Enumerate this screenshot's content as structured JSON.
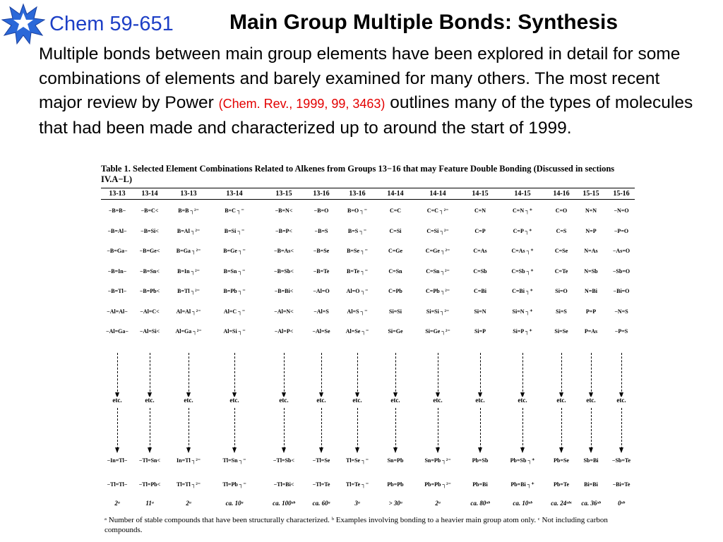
{
  "header": {
    "course": "Chem 59-651",
    "title": "Main Group Multiple Bonds: Synthesis",
    "logo_icon": "blue-star-burst-icon",
    "course_color": "#1d3fc6"
  },
  "intro": {
    "text_before": "Multiple bonds between main group elements have been explored in detail for some combinations of elements and barely examined for many others.  The most recent major review by Power ",
    "citation": "(Chem. Rev., 1999, 99, 3463)",
    "text_after": " outlines many of the types of molecules that had been made and characterized up to around the start of 1999.",
    "citation_color": "#e30000"
  },
  "table": {
    "caption": "Table 1. Selected Element Combinations Related to Alkenes from Groups 13−16 that may Feature Double Bonding (Discussed in sections IV.A−L)",
    "columns": [
      "13-13",
      "13-14",
      "13-13",
      "13-14",
      "13-15",
      "13-16",
      "13-16",
      "14-14",
      "14-14",
      "14-15",
      "14-15",
      "14-16",
      "15-15",
      "15-16"
    ],
    "rows_top": [
      [
        "−B=B−",
        "−B=C<",
        "B=B ┐²⁻",
        "B=C ┐⁻",
        "−B=N<",
        "−B=O",
        "B=O ┐⁻",
        "C=C",
        "C=C ┐²⁻",
        "C=N",
        "C=N ┐⁺",
        "C=O",
        "N=N",
        "−N=O"
      ],
      [
        "−B=Al−",
        "−B=Si<",
        "B=Al ┐²⁻",
        "B=Si ┐⁻",
        "−B=P<",
        "−B=S",
        "B=S ┐⁻",
        "C=Si",
        "C=Si ┐²⁻",
        "C=P",
        "C=P ┐⁺",
        "C=S",
        "N=P",
        "−P=O"
      ],
      [
        "−B=Ga−",
        "−B=Ge<",
        "B=Ga ┐²⁻",
        "B=Ge ┐⁻",
        "−B=As<",
        "−B=Se",
        "B=Se ┐⁻",
        "C=Ge",
        "C=Ge ┐²⁻",
        "C=As",
        "C=As ┐⁺",
        "C=Se",
        "N=As",
        "−As=O"
      ],
      [
        "−B=In−",
        "−B=Sn<",
        "B=In ┐²⁻",
        "B=Sn ┐⁻",
        "−B=Sb<",
        "−B=Te",
        "B=Te ┐⁻",
        "C=Sn",
        "C=Sn ┐²⁻",
        "C=Sb",
        "C=Sb ┐⁺",
        "C=Te",
        "N=Sb",
        "−Sb=O"
      ],
      [
        "−B=Tl−",
        "−B=Pb<",
        "B=Tl ┐²⁻",
        "B=Pb ┐⁻",
        "−B=Bi<",
        "−Al=O",
        "Al=O ┐⁻",
        "C=Pb",
        "C=Pb ┐²⁻",
        "C=Bi",
        "C=Bi ┐⁺",
        "Si=O",
        "N=Bi",
        "−Bi=O"
      ],
      [
        "−Al=Al−",
        "−Al=C<",
        "Al=Al ┐²⁻",
        "Al=C ┐⁻",
        "−Al=N<",
        "−Al=S",
        "Al=S ┐⁻",
        "Si=Si",
        "Si=Si ┐²⁻",
        "Si=N",
        "Si=N ┐⁺",
        "Si=S",
        "P=P",
        "−N=S"
      ],
      [
        "−Al=Ga−",
        "−Al=Si<",
        "Al=Ga ┐²⁻",
        "Al=Si ┐⁻",
        "−Al=P<",
        "−Al=Se",
        "Al=Se ┐⁻",
        "Si=Ge",
        "Si=Ge ┐²⁻",
        "Si=P",
        "Si=P ┐⁺",
        "Si=Se",
        "P=As",
        "−P=S"
      ]
    ],
    "etc_label": "etc.",
    "rows_bottom": [
      [
        "−In=Tl−",
        "−Tl=Sn<",
        "In=Tl ┐²⁻",
        "Tl=Sn ┐⁻",
        "−Tl=Sb<",
        "−Tl=Se",
        "Tl=Se ┐⁻",
        "Sn=Pb",
        "Sn=Pb ┐²⁻",
        "Pb=Sb",
        "Pb=Sb ┐⁺",
        "Pb=Se",
        "Sb=Bi",
        "−Sb=Te"
      ],
      [
        "−Tl=Tl−",
        "−Tl=Pb<",
        "Tl=Tl ┐²⁻",
        "Tl=Pb ┐⁻",
        "−Tl=Bi<",
        "−Tl=Te",
        "Tl=Te ┐⁻",
        "Pb=Pb",
        "Pb=Pb ┐²⁻",
        "Pb=Bi",
        "Pb=Bi ┐⁺",
        "Pb=Te",
        "Bi=Bi",
        "−Bi=Te"
      ]
    ],
    "counts": [
      "2ᵃ",
      "11ᵃ",
      "2ᵃ",
      "ca. 10ᵃ",
      "ca. 100ᵃᵇ",
      "ca. 60ᵃ",
      "3ᵃ",
      "> 30ᵃ",
      "2ᵃ",
      "ca. 80ᵃᵇ",
      "ca. 10ᵃᵇ",
      "ca. 24ᵃᵇᶜ",
      "ca. 36ᵃᵇ",
      "0ᵃᵇ"
    ],
    "footnote": "ᵃ Number of stable compounds that have been structurally characterized. ᵇ Examples involving bonding to a heavier main group atom only. ᶜ Not including carbon compounds."
  }
}
